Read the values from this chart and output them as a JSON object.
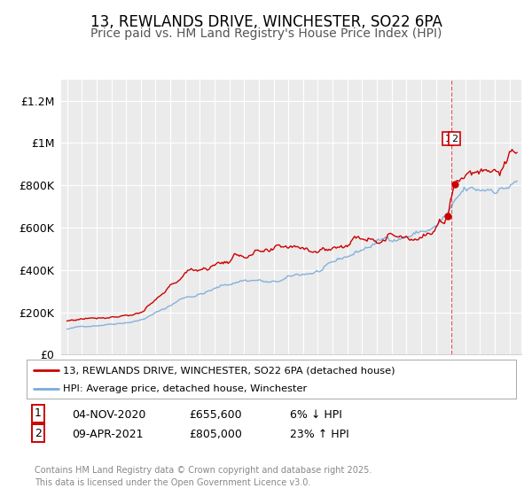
{
  "title": "13, REWLANDS DRIVE, WINCHESTER, SO22 6PA",
  "subtitle": "Price paid vs. HM Land Registry's House Price Index (HPI)",
  "title_fontsize": 12,
  "subtitle_fontsize": 10,
  "background_color": "#ffffff",
  "plot_bg_color": "#ebebeb",
  "grid_color": "#ffffff",
  "red_color": "#cc0000",
  "blue_color": "#7aabdb",
  "sale1_date": 2020.84,
  "sale1_price": 655600,
  "sale2_date": 2021.27,
  "sale2_price": 805000,
  "vline_date": 2021.05,
  "ylim": [
    0,
    1300000
  ],
  "yticks": [
    0,
    200000,
    400000,
    600000,
    800000,
    1000000,
    1200000
  ],
  "ytick_labels": [
    "£0",
    "£200K",
    "£400K",
    "£600K",
    "£800K",
    "£1M",
    "£1.2M"
  ],
  "xmin": 1994.6,
  "xmax": 2025.8,
  "legend_label_red": "13, REWLANDS DRIVE, WINCHESTER, SO22 6PA (detached house)",
  "legend_label_blue": "HPI: Average price, detached house, Winchester",
  "footer": "Contains HM Land Registry data © Crown copyright and database right 2025.\nThis data is licensed under the Open Government Licence v3.0.",
  "sale1_row": "04-NOV-2020",
  "sale1_price_str": "£655,600",
  "sale1_hpi": "6% ↓ HPI",
  "sale2_row": "09-APR-2021",
  "sale2_price_str": "£805,000",
  "sale2_hpi": "23% ↑ HPI"
}
